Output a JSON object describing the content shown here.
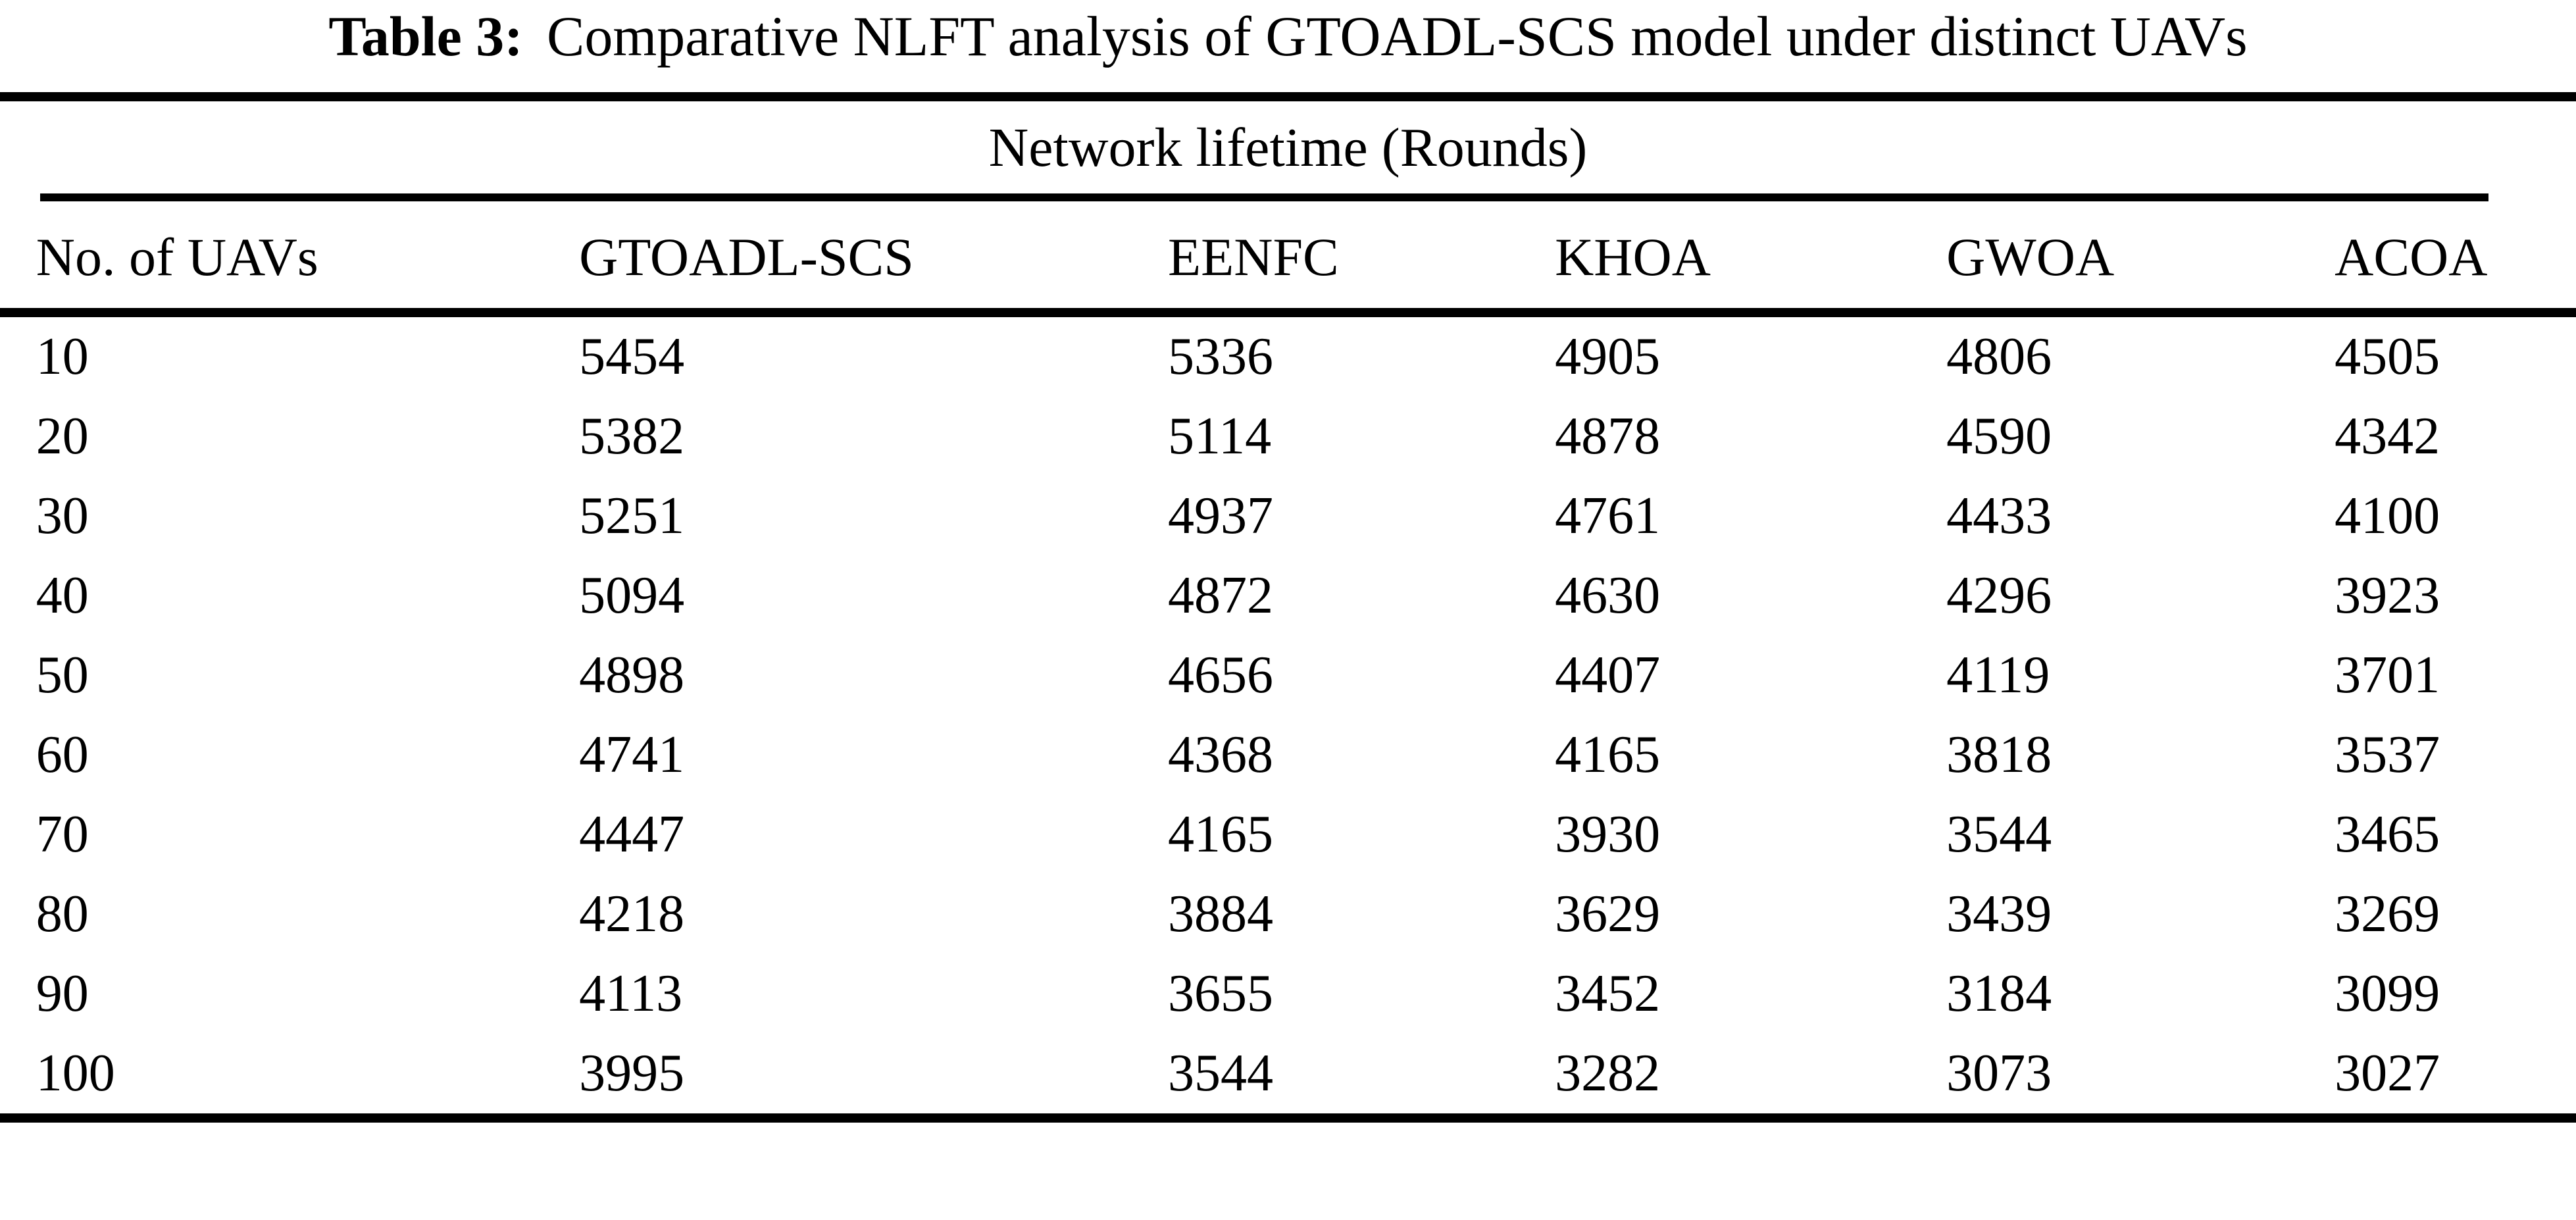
{
  "caption": {
    "label": "Table 3:",
    "text": "Comparative NLFT analysis of GTOADL-SCS model under distinct UAVs"
  },
  "chart_data": {
    "type": "table",
    "title": "Table 3: Comparative NLFT analysis of GTOADL-SCS model under distinct UAVs",
    "span_header": "Network lifetime (Rounds)",
    "columns": [
      "No. of UAVs",
      "GTOADL-SCS",
      "EENFC",
      "KHOA",
      "GWOA",
      "ACOA"
    ],
    "rows": [
      [
        10,
        5454,
        5336,
        4905,
        4806,
        4505
      ],
      [
        20,
        5382,
        5114,
        4878,
        4590,
        4342
      ],
      [
        30,
        5251,
        4937,
        4761,
        4433,
        4100
      ],
      [
        40,
        5094,
        4872,
        4630,
        4296,
        3923
      ],
      [
        50,
        4898,
        4656,
        4407,
        4119,
        3701
      ],
      [
        60,
        4741,
        4368,
        4165,
        3818,
        3537
      ],
      [
        70,
        4447,
        4165,
        3930,
        3544,
        3465
      ],
      [
        80,
        4218,
        3884,
        3629,
        3439,
        3269
      ],
      [
        90,
        4113,
        3655,
        3452,
        3184,
        3099
      ],
      [
        100,
        3995,
        3544,
        3282,
        3073,
        3027
      ]
    ]
  },
  "colors": {
    "text": "#000000",
    "background": "#ffffff",
    "rule": "#000000"
  }
}
